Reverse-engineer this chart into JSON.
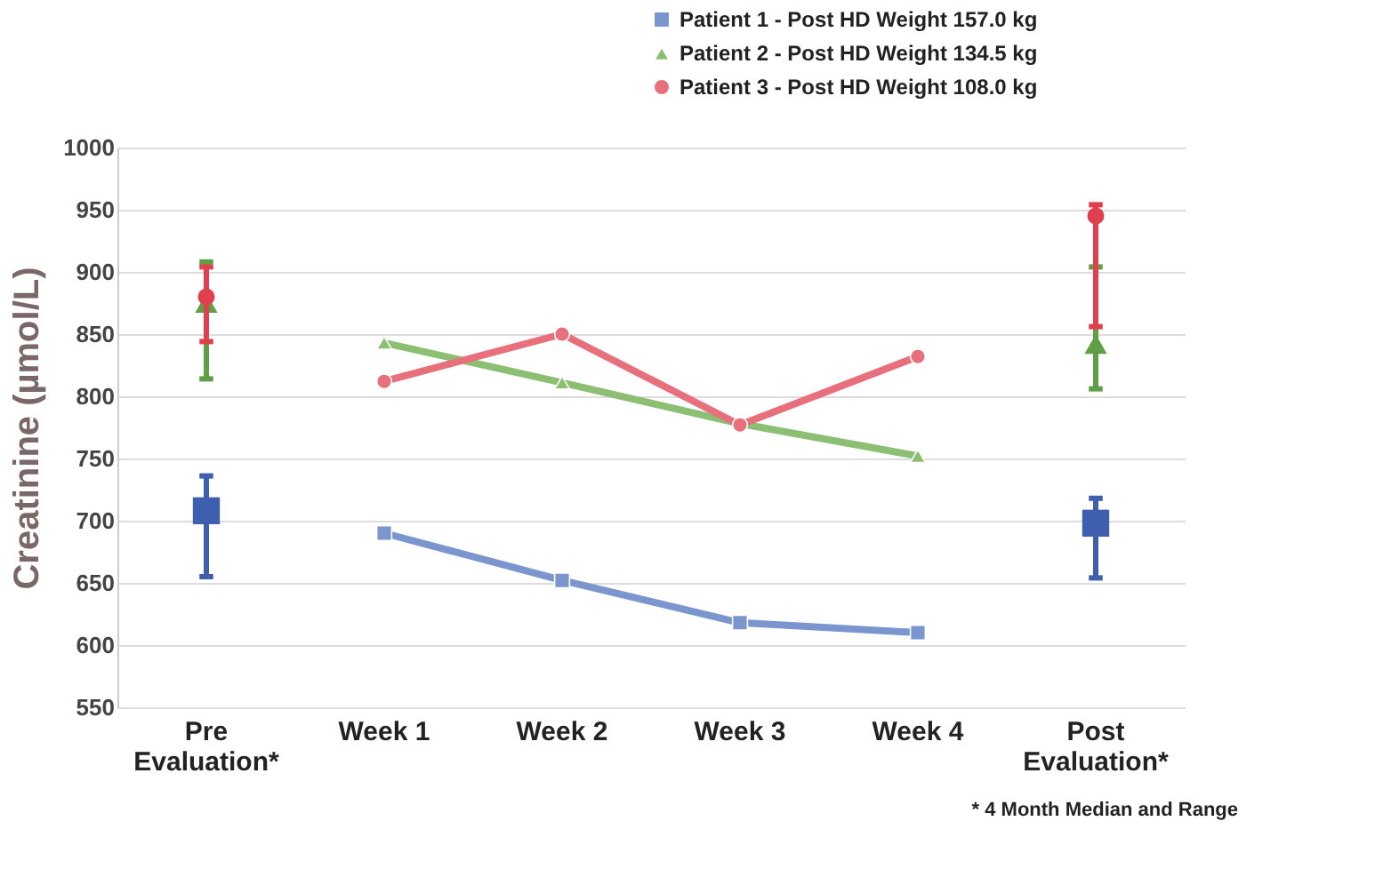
{
  "chart_data": {
    "type": "line",
    "ylabel": "Creatinine (µmol/L)",
    "categories": [
      "Pre\nEvaluation*",
      "Week 1",
      "Week 2",
      "Week 3",
      "Week 4",
      "Post\nEvaluation*"
    ],
    "ylim": [
      550,
      1000
    ],
    "yticks": [
      550,
      600,
      650,
      700,
      750,
      800,
      850,
      900,
      950,
      1000
    ],
    "grid": "y",
    "legend": "top right",
    "line_style": "solid",
    "series": [
      {
        "name": "Patient 1 - Post HD Weight 157.0 kg",
        "type": "line",
        "color": "#7b95cf",
        "marker": "square",
        "values": [
          null,
          690,
          652,
          618,
          610,
          null
        ]
      },
      {
        "name": "Patient 2 - Post HD Weight 134.5 kg",
        "type": "line",
        "color": "#8cbf72",
        "marker": "triangle",
        "values": [
          null,
          843,
          811,
          778,
          752,
          null
        ]
      },
      {
        "name": "Patient 3 - Post HD Weight 108.0 kg",
        "type": "line",
        "color": "#e86f7c",
        "marker": "circle",
        "values": [
          null,
          812,
          850,
          777,
          832,
          null
        ]
      },
      {
        "type": "scatter",
        "color": "#3d5fad",
        "marker": "square",
        "values": [
          708,
          null,
          null,
          null,
          null,
          698
        ],
        "errors": [
          [
            655,
            736
          ],
          null,
          null,
          null,
          null,
          [
            654,
            718
          ]
        ]
      },
      {
        "type": "scatter",
        "color": "#5e9e45",
        "marker": "triangle",
        "values": [
          875,
          null,
          null,
          null,
          null,
          842
        ],
        "errors": [
          [
            814,
            908
          ],
          null,
          null,
          null,
          null,
          [
            806,
            904
          ]
        ]
      },
      {
        "type": "scatter",
        "color": "#e0404e",
        "marker": "circle",
        "values": [
          880,
          null,
          null,
          null,
          null,
          945
        ],
        "errors": [
          [
            844,
            904
          ],
          null,
          null,
          null,
          null,
          [
            856,
            954
          ]
        ]
      }
    ],
    "annotations": [
      "* 4 Month Median and Range"
    ]
  }
}
